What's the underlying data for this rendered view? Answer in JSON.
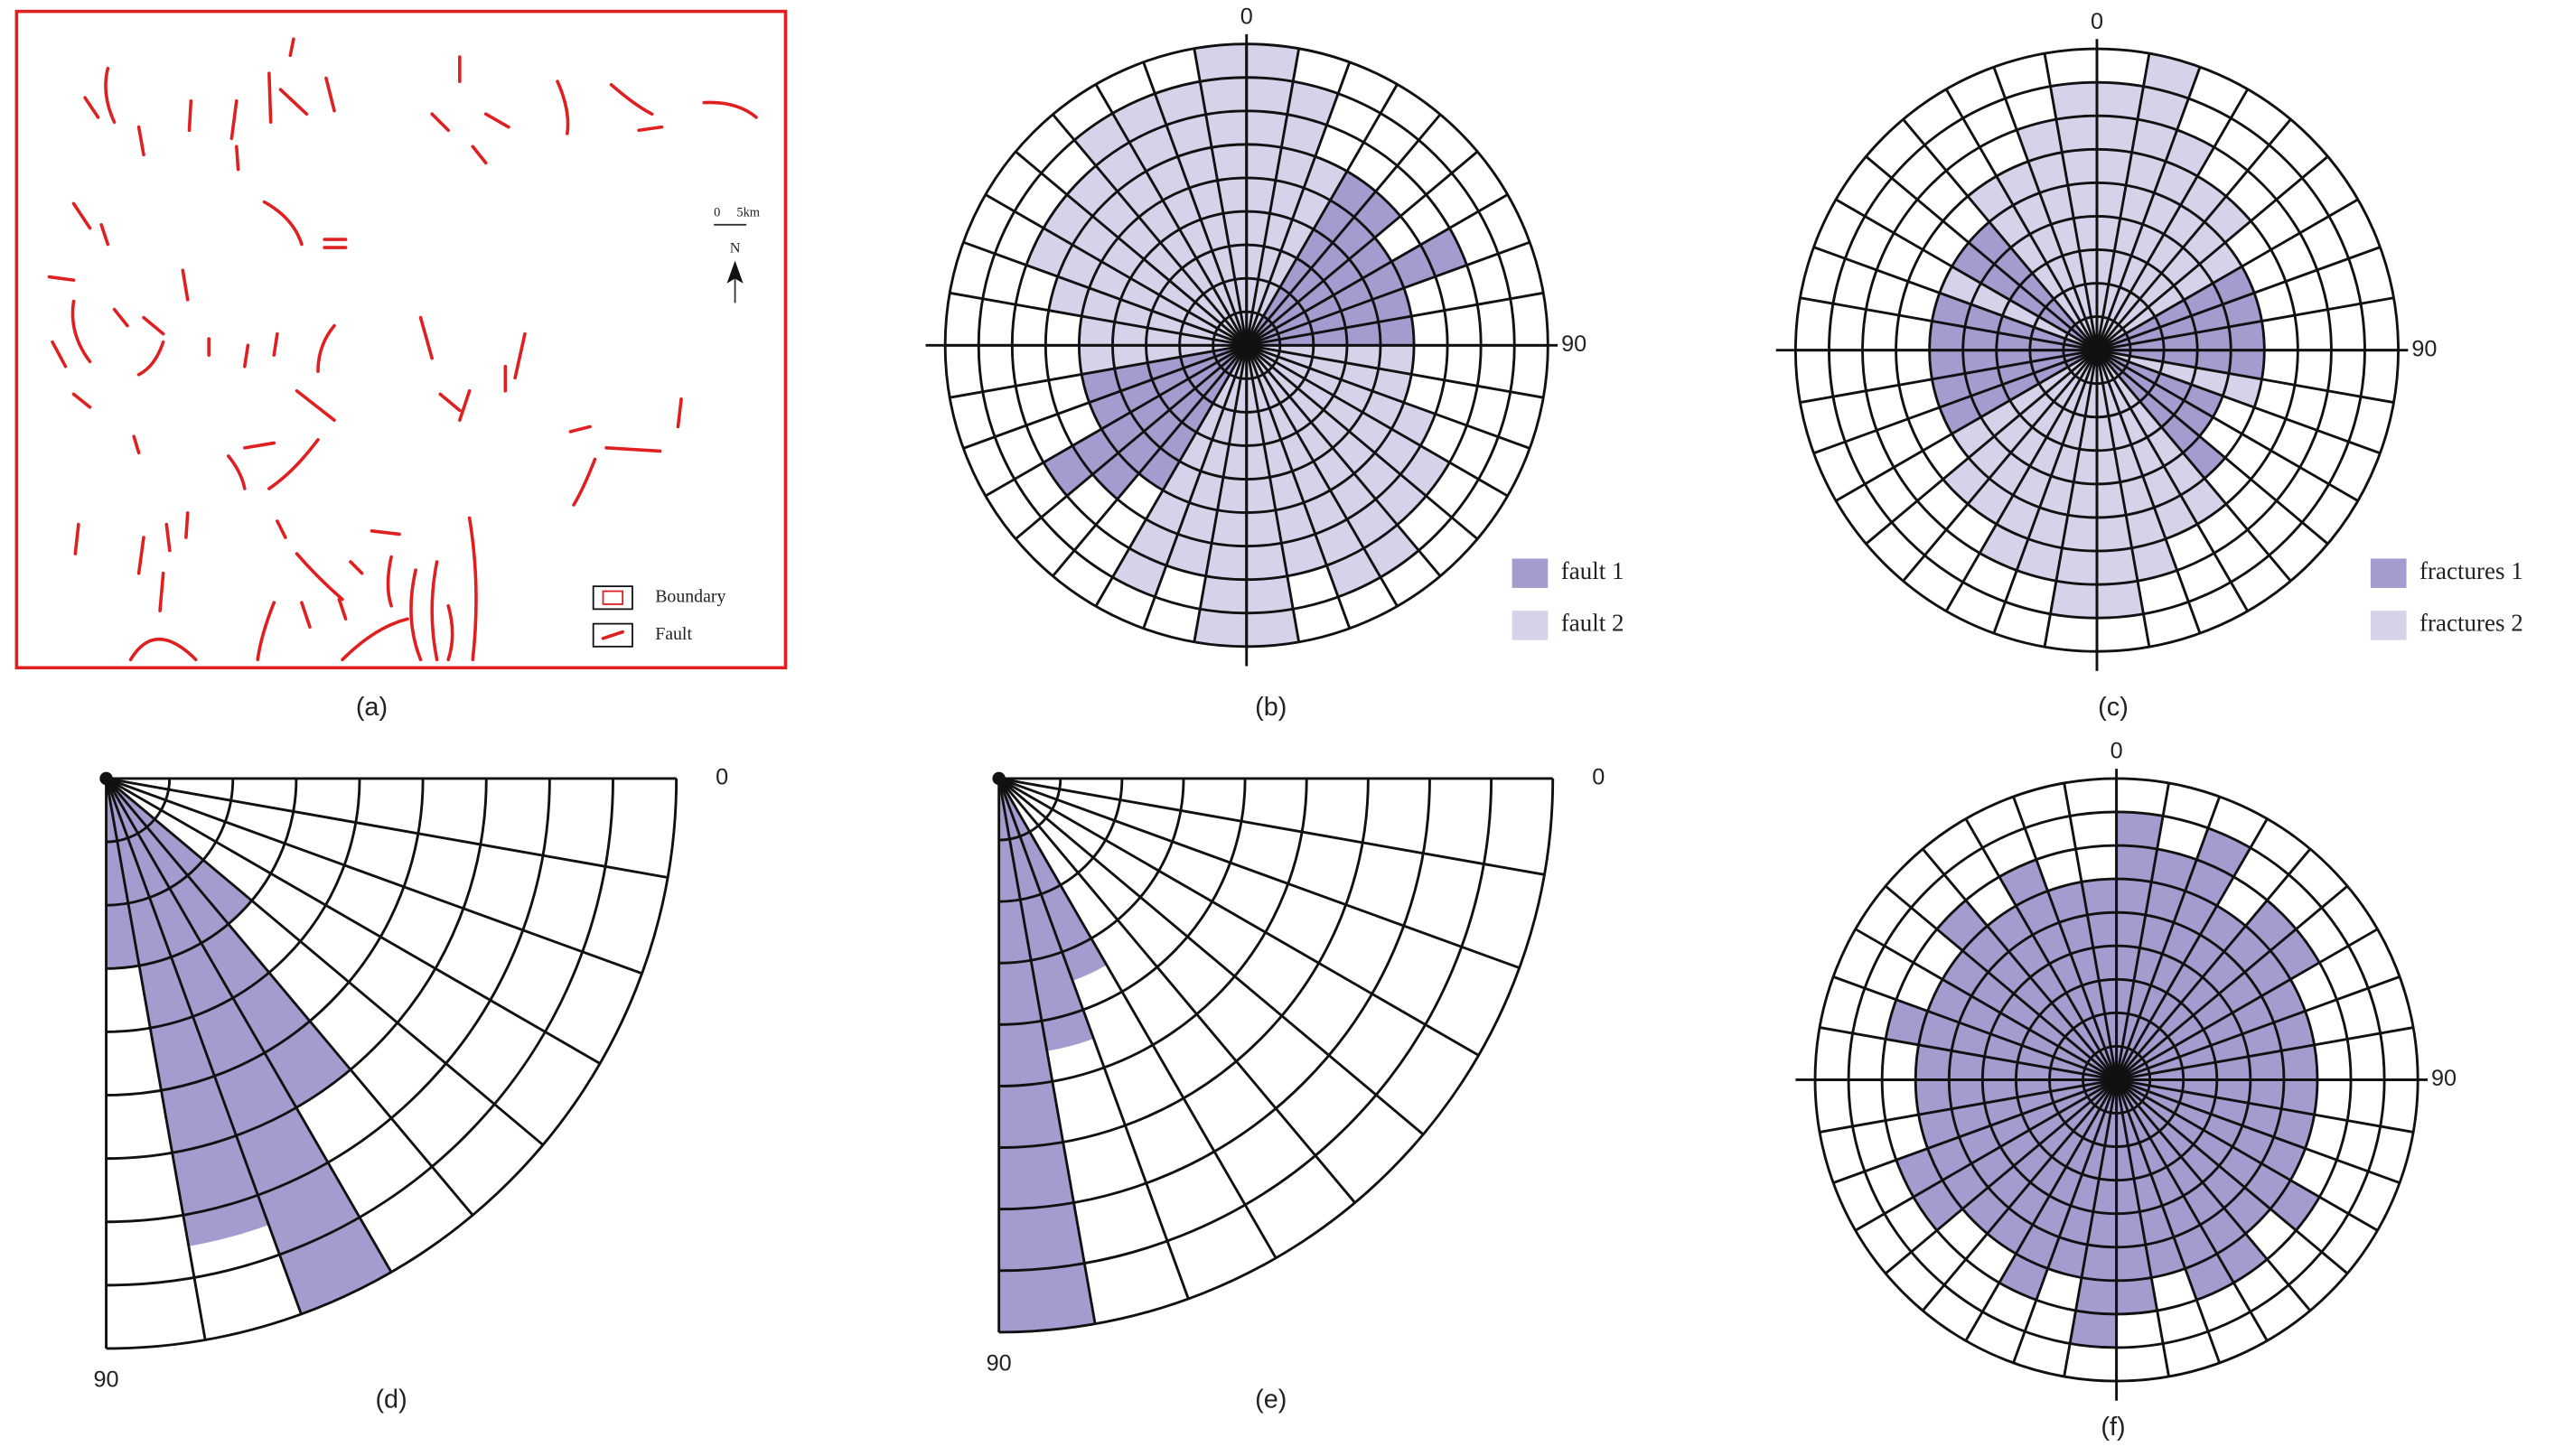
{
  "map": {
    "label": "(a)",
    "legend": [
      "Boundary",
      "Fault"
    ],
    "scale": [
      "0",
      "5km"
    ],
    "north": "N"
  },
  "chart_data": [
    {
      "type": "rose",
      "label": "(b)",
      "xlim": [
        0,
        360
      ],
      "ylim": [
        0,
        9
      ],
      "xticks": [
        0,
        90
      ],
      "series": [
        {
          "name": "fault 1",
          "color": "#a59bcf",
          "values": [
            0,
            0,
            0,
            6,
            6,
            5,
            7,
            5,
            5,
            0,
            0,
            0,
            0,
            0,
            0,
            0,
            0,
            0,
            0,
            0,
            0,
            5,
            6,
            7,
            5,
            5,
            0,
            0,
            0,
            0,
            0,
            0,
            0,
            0,
            0,
            0
          ]
        },
        {
          "name": "fault 2",
          "color": "#d6d2ea",
          "values": [
            9,
            8,
            6,
            0,
            0,
            0,
            0,
            0,
            0,
            5,
            5,
            6,
            7,
            7,
            8,
            8,
            7,
            9,
            9,
            7,
            8,
            0,
            0,
            0,
            0,
            0,
            5,
            5,
            6,
            7,
            7,
            7,
            8,
            8,
            8,
            9
          ]
        }
      ]
    },
    {
      "type": "rose",
      "label": "(c)",
      "xlim": [
        0,
        360
      ],
      "ylim": [
        0,
        9
      ],
      "xticks": [
        0,
        90
      ],
      "series": [
        {
          "name": "fractures 1",
          "color": "#a59bcf",
          "values": [
            0,
            0,
            0,
            0,
            0,
            0,
            5,
            5,
            5,
            5,
            0,
            4,
            4,
            5,
            0,
            0,
            0,
            0,
            0,
            0,
            0,
            0,
            0,
            0,
            5,
            5,
            5,
            5,
            5,
            0,
            5,
            5,
            0,
            0,
            0,
            0
          ]
        },
        {
          "name": "fractures 2",
          "color": "#d6d2ea",
          "values": [
            8,
            9,
            7,
            6,
            6,
            5,
            0,
            0,
            0,
            0,
            5,
            0,
            0,
            0,
            6,
            6,
            7,
            8,
            8,
            7,
            7,
            6,
            6,
            5,
            0,
            0,
            0,
            0,
            0,
            5,
            0,
            0,
            6,
            6,
            7,
            8
          ]
        }
      ]
    },
    {
      "type": "rose",
      "label": "(d)",
      "xlim": [
        0,
        90
      ],
      "ylim": [
        0,
        9
      ],
      "xticks": [
        0,
        90
      ],
      "color": "#a59bcf",
      "values": [
        0,
        0,
        0,
        0,
        3,
        6,
        9,
        7.5,
        3
      ]
    },
    {
      "type": "rose",
      "label": "(e)",
      "xlim": [
        0,
        90
      ],
      "ylim": [
        0,
        9
      ],
      "xticks": [
        0,
        90
      ],
      "color": "#a59bcf",
      "values": [
        0,
        0,
        0,
        0,
        0,
        0,
        3.5,
        4.5,
        9
      ]
    },
    {
      "type": "rose",
      "label": "(f)",
      "xlim": [
        0,
        360
      ],
      "ylim": [
        0,
        9
      ],
      "xticks": [
        0,
        90
      ],
      "color": "#a59bcf",
      "values": [
        8,
        7,
        8,
        6,
        7,
        7,
        6,
        6,
        6,
        6,
        6,
        6,
        7,
        6,
        7,
        7,
        6,
        7,
        8,
        6,
        7,
        6,
        6,
        7,
        7,
        6,
        6,
        6,
        7,
        6,
        6,
        7,
        6,
        7,
        6,
        6
      ]
    }
  ]
}
